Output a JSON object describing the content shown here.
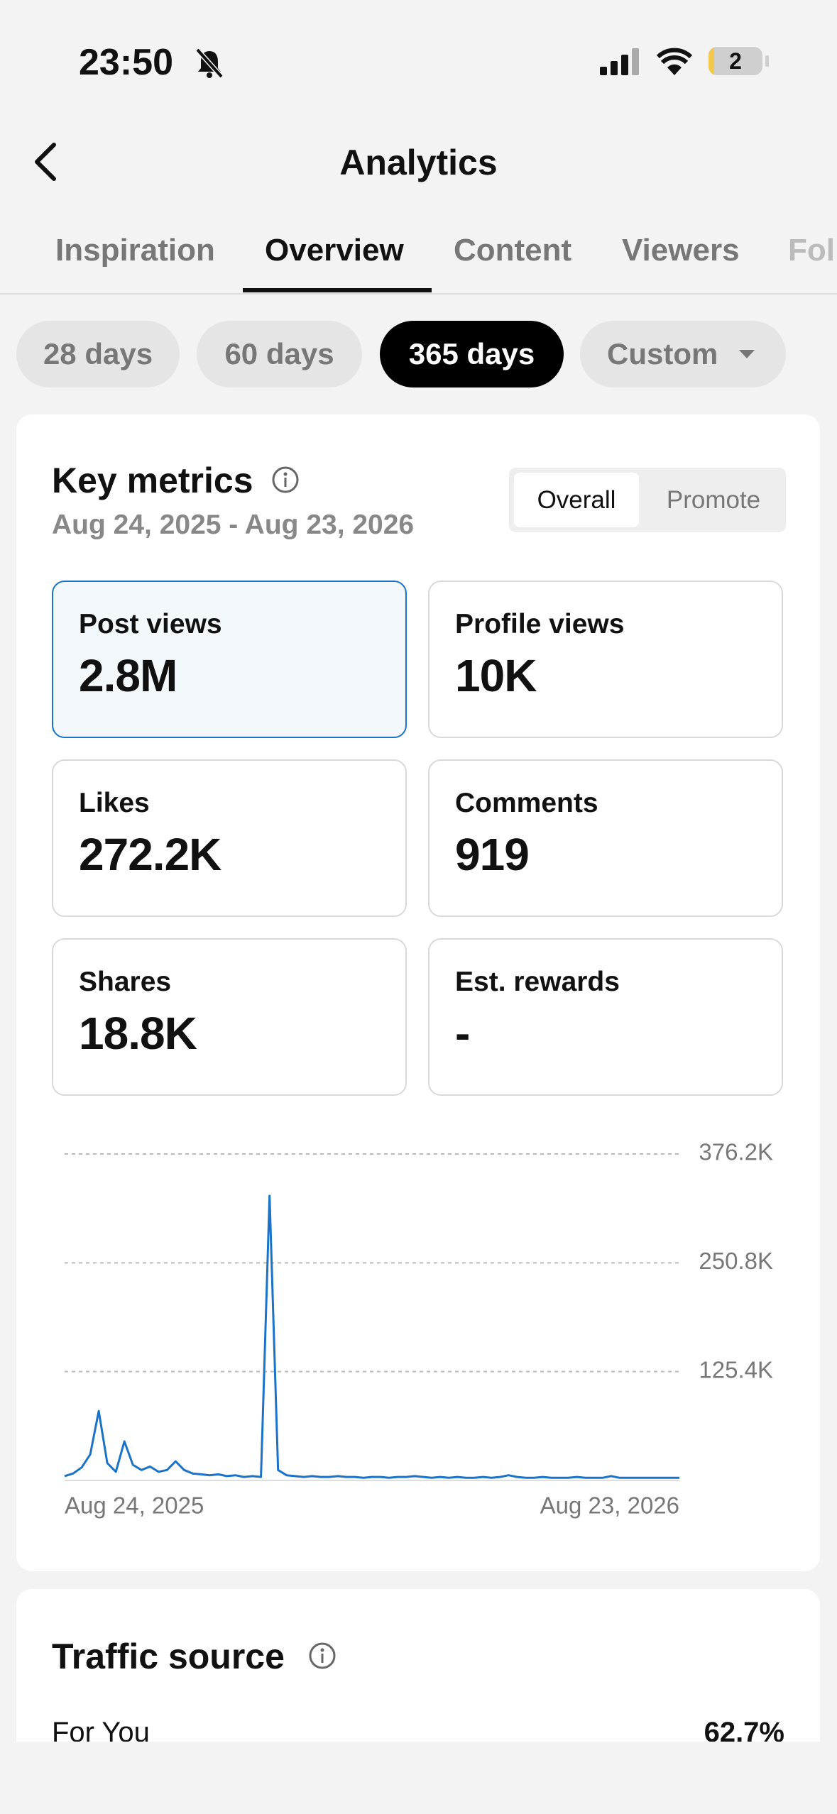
{
  "status_bar": {
    "time": "23:50",
    "battery": "2"
  },
  "header": {
    "title": "Analytics"
  },
  "tabs": [
    "Inspiration",
    "Overview",
    "Content",
    "Viewers",
    "Followers"
  ],
  "ranges": [
    "28 days",
    "60 days",
    "365 days",
    "Custom"
  ],
  "key_metrics": {
    "title": "Key metrics",
    "date_range": "Aug 24, 2025 - Aug 23, 2026",
    "toggle": [
      "Overall",
      "Promote"
    ],
    "metrics": [
      {
        "label": "Post views",
        "value": "2.8M"
      },
      {
        "label": "Profile views",
        "value": "10K"
      },
      {
        "label": "Likes",
        "value": "272.2K"
      },
      {
        "label": "Comments",
        "value": "919"
      },
      {
        "label": "Shares",
        "value": "18.8K"
      },
      {
        "label": "Est. rewards",
        "value": "-"
      }
    ]
  },
  "chart_data": {
    "type": "line",
    "color": "#1a73c8",
    "categories": [
      "Aug 24, 2025",
      null,
      null,
      null,
      null,
      null,
      null,
      null,
      null,
      null,
      null,
      null,
      null,
      null,
      null,
      null,
      null,
      null,
      null,
      null,
      null,
      null,
      null,
      null,
      null,
      null,
      null,
      null,
      null,
      null,
      null,
      null,
      null,
      null,
      null,
      null,
      null,
      null,
      null,
      null,
      null,
      null,
      null,
      null,
      null,
      null,
      null,
      null,
      null,
      null,
      null,
      null,
      null,
      null,
      null,
      null,
      null,
      null,
      null,
      null,
      null,
      null,
      null,
      null,
      null,
      null,
      null,
      null,
      null,
      null,
      null,
      null,
      "Aug 23, 2026"
    ],
    "values": [
      5000,
      8000,
      15000,
      30000,
      80000,
      20000,
      10000,
      45000,
      18000,
      12000,
      16000,
      10000,
      12000,
      22000,
      12000,
      8000,
      7000,
      6000,
      7000,
      5000,
      6000,
      4000,
      5000,
      4000,
      328000,
      12000,
      6000,
      5000,
      4000,
      5000,
      4000,
      4000,
      5000,
      4000,
      4000,
      3000,
      4000,
      4000,
      3000,
      4000,
      4000,
      5000,
      4000,
      3000,
      4000,
      3000,
      4000,
      3000,
      3000,
      4000,
      3000,
      4000,
      6000,
      4000,
      3000,
      3000,
      4000,
      3000,
      3000,
      3000,
      4000,
      3000,
      3000,
      3000,
      5000,
      3000,
      3000,
      3000,
      3000,
      3000,
      3000,
      3000,
      3000
    ],
    "ylim": [
      0,
      376200
    ],
    "yticks": [
      {
        "value": 125400,
        "label": "125.4K"
      },
      {
        "value": 250800,
        "label": "250.8K"
      },
      {
        "value": 376200,
        "label": "376.2K"
      }
    ],
    "grid": true
  },
  "traffic_source": {
    "title": "Traffic source",
    "items": [
      {
        "label": "For You",
        "value": "62.7%"
      }
    ]
  }
}
